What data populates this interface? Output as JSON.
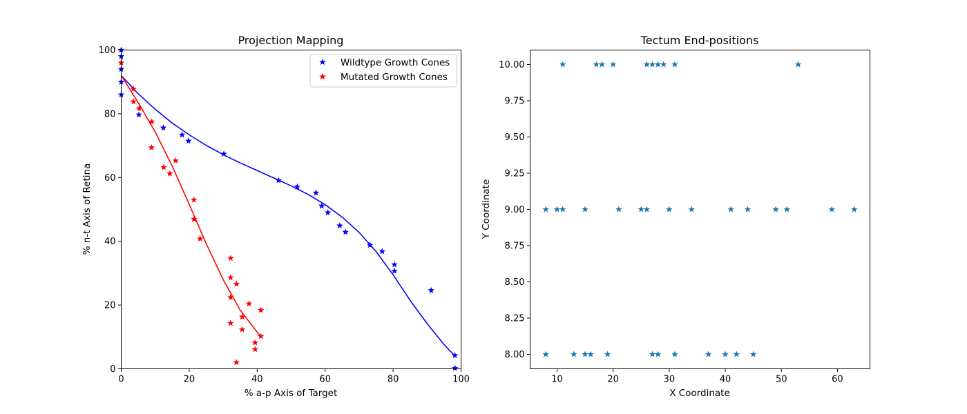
{
  "chart_data": [
    {
      "type": "scatter",
      "title": "Projection Mapping",
      "xlabel": "% a-p Axis of Target",
      "ylabel": "% n-t Axis of Retina",
      "xlim": [
        0,
        100
      ],
      "ylim": [
        0,
        100
      ],
      "xticks": [
        "0",
        "20",
        "40",
        "60",
        "80",
        "100"
      ],
      "yticks": [
        "0",
        "20",
        "40",
        "60",
        "80",
        "100"
      ],
      "grid": false,
      "legend_position": "top-right",
      "marker": "star",
      "series": [
        {
          "name": "Wildtype Growth Cones",
          "color": "#0000ff",
          "points": [
            [
              0,
              100
            ],
            [
              0,
              98
            ],
            [
              0,
              94
            ],
            [
              0,
              90
            ],
            [
              0,
              86
            ],
            [
              5.2,
              79.7
            ],
            [
              12.4,
              75.6
            ],
            [
              17.9,
              73.4
            ],
            [
              19.8,
              71.5
            ],
            [
              30.2,
              67.4
            ],
            [
              46.3,
              59.1
            ],
            [
              51.8,
              57.1
            ],
            [
              57.3,
              55.2
            ],
            [
              59.0,
              51.1
            ],
            [
              60.8,
              49.0
            ],
            [
              64.3,
              44.9
            ],
            [
              66.0,
              42.9
            ],
            [
              73.2,
              38.8
            ],
            [
              76.8,
              36.8
            ],
            [
              80.4,
              32.7
            ],
            [
              80.4,
              30.7
            ],
            [
              91.2,
              24.6
            ],
            [
              98.2,
              4.2
            ],
            [
              98.2,
              0.2
            ]
          ],
          "fit": [
            [
              0,
              92
            ],
            [
              5,
              86.3
            ],
            [
              10,
              81.4
            ],
            [
              15,
              77.1
            ],
            [
              20,
              73.4
            ],
            [
              25,
              70.1
            ],
            [
              30,
              67.2
            ],
            [
              35,
              64.6
            ],
            [
              40,
              62.2
            ],
            [
              45,
              59.8
            ],
            [
              50,
              57.4
            ],
            [
              55,
              54.7
            ],
            [
              60,
              51.5
            ],
            [
              65,
              47.6
            ],
            [
              70,
              42.8
            ],
            [
              75,
              36.8
            ],
            [
              80,
              29.5
            ],
            [
              85,
              21.5
            ],
            [
              90,
              14.2
            ],
            [
              95,
              7.6
            ],
            [
              98.2,
              4
            ]
          ]
        },
        {
          "name": "Mutated Growth Cones",
          "color": "#ff0000",
          "points": [
            [
              0,
              96
            ],
            [
              3.6,
              87.8
            ],
            [
              3.6,
              83.8
            ],
            [
              5.3,
              81.7
            ],
            [
              9.0,
              77.5
            ],
            [
              8.9,
              69.4
            ],
            [
              12.5,
              63.2
            ],
            [
              14.3,
              61.2
            ],
            [
              16.0,
              65.3
            ],
            [
              21.4,
              53.0
            ],
            [
              21.4,
              46.9
            ],
            [
              23.2,
              40.8
            ],
            [
              32.2,
              34.7
            ],
            [
              32.2,
              28.6
            ],
            [
              33.9,
              26.6
            ],
            [
              32.2,
              22.4
            ],
            [
              37.6,
              20.4
            ],
            [
              41.1,
              18.4
            ],
            [
              35.6,
              16.3
            ],
            [
              32.2,
              14.3
            ],
            [
              35.6,
              12.3
            ],
            [
              41.1,
              10.2
            ],
            [
              39.4,
              8.2
            ],
            [
              39.4,
              6.1
            ],
            [
              33.9,
              2.0
            ]
          ],
          "fit": [
            [
              0,
              92
            ],
            [
              5,
              83.5
            ],
            [
              10,
              74.3
            ],
            [
              15,
              63.6
            ],
            [
              20,
              51.6
            ],
            [
              25,
              39.3
            ],
            [
              30,
              28.0
            ],
            [
              35,
              18.4
            ],
            [
              41.1,
              10
            ]
          ]
        }
      ]
    },
    {
      "type": "scatter",
      "title": "Tectum End-positions",
      "xlabel": "X Coordinate",
      "ylabel": "Y Coordinate",
      "xlim": [
        5.2,
        65.8
      ],
      "ylim": [
        7.9,
        10.1
      ],
      "xticks": [
        "10",
        "20",
        "30",
        "40",
        "50",
        "60"
      ],
      "yticks": [
        "8.00",
        "8.25",
        "8.50",
        "8.75",
        "9.00",
        "9.25",
        "9.50",
        "9.75",
        "10.00"
      ],
      "grid": false,
      "marker": "star",
      "series": [
        {
          "color": "#1f77b4",
          "points": [
            [
              11,
              10
            ],
            [
              17,
              10
            ],
            [
              18,
              10
            ],
            [
              20,
              10
            ],
            [
              26,
              10
            ],
            [
              27,
              10
            ],
            [
              28,
              10
            ],
            [
              29,
              10
            ],
            [
              31,
              10
            ],
            [
              53,
              10
            ],
            [
              8,
              9
            ],
            [
              10,
              9
            ],
            [
              11,
              9
            ],
            [
              15,
              9
            ],
            [
              21,
              9
            ],
            [
              25,
              9
            ],
            [
              26,
              9
            ],
            [
              30,
              9
            ],
            [
              34,
              9
            ],
            [
              41,
              9
            ],
            [
              44,
              9
            ],
            [
              49,
              9
            ],
            [
              51,
              9
            ],
            [
              59,
              9
            ],
            [
              63,
              9
            ],
            [
              8,
              8
            ],
            [
              13,
              8
            ],
            [
              15,
              8
            ],
            [
              16,
              8
            ],
            [
              19,
              8
            ],
            [
              27,
              8
            ],
            [
              28,
              8
            ],
            [
              31,
              8
            ],
            [
              37,
              8
            ],
            [
              40,
              8
            ],
            [
              42,
              8
            ],
            [
              45,
              8
            ]
          ]
        }
      ]
    }
  ]
}
